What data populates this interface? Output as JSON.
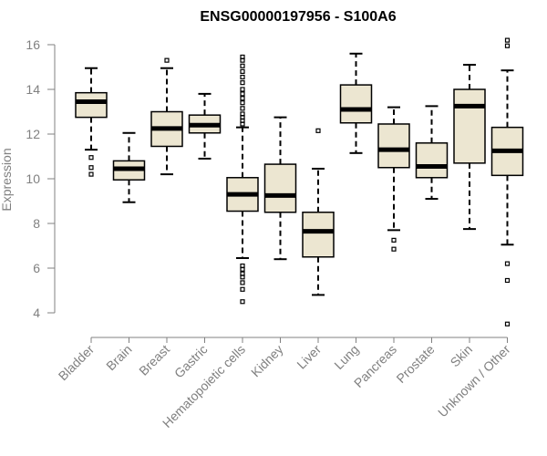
{
  "chart_data": {
    "type": "box",
    "title": "ENSG00000197956 - S100A6",
    "ylabel": "Expression",
    "xlabel": "",
    "ylim": [
      3.0,
      16.3
    ],
    "yticks": [
      4,
      6,
      8,
      10,
      12,
      14,
      16
    ],
    "box_color": "#ece6d1",
    "categories": [
      "Bladder",
      "Brain",
      "Breast",
      "Gastric",
      "Hematopoietic cells",
      "Kidney",
      "Liver",
      "Lung",
      "Pancreas",
      "Prostate",
      "Skin",
      "Unknown / Other"
    ],
    "boxes": [
      {
        "name": "Bladder",
        "whisker_low": 11.3,
        "q1": 12.75,
        "median": 13.45,
        "q3": 13.85,
        "whisker_high": 14.95,
        "outliers": [
          10.2,
          10.5,
          10.95
        ]
      },
      {
        "name": "Brain",
        "whisker_low": 8.95,
        "q1": 9.95,
        "median": 10.45,
        "q3": 10.8,
        "whisker_high": 12.05,
        "outliers": []
      },
      {
        "name": "Breast",
        "whisker_low": 10.2,
        "q1": 11.45,
        "median": 12.25,
        "q3": 13.0,
        "whisker_high": 14.95,
        "outliers": [
          15.3
        ]
      },
      {
        "name": "Gastric",
        "whisker_low": 10.9,
        "q1": 12.05,
        "median": 12.4,
        "q3": 12.85,
        "whisker_high": 13.8,
        "outliers": []
      },
      {
        "name": "Hematopoietic cells",
        "whisker_low": 6.45,
        "q1": 8.55,
        "median": 9.3,
        "q3": 10.05,
        "whisker_high": 12.3,
        "outliers": [
          4.5,
          5.05,
          5.35,
          5.6,
          5.75,
          5.95,
          6.1,
          12.45,
          12.6,
          12.75,
          12.9,
          13.15,
          13.4,
          13.6,
          13.8,
          14.0,
          14.3,
          14.55,
          14.8,
          15.05,
          15.3,
          15.45
        ]
      },
      {
        "name": "Kidney",
        "whisker_low": 6.4,
        "q1": 8.5,
        "median": 9.25,
        "q3": 10.65,
        "whisker_high": 12.75,
        "outliers": []
      },
      {
        "name": "Liver",
        "whisker_low": 4.8,
        "q1": 6.5,
        "median": 7.65,
        "q3": 8.5,
        "whisker_high": 10.45,
        "outliers": [
          12.15
        ]
      },
      {
        "name": "Lung",
        "whisker_low": 11.15,
        "q1": 12.5,
        "median": 13.1,
        "q3": 14.2,
        "whisker_high": 15.6,
        "outliers": []
      },
      {
        "name": "Pancreas",
        "whisker_low": 7.7,
        "q1": 10.5,
        "median": 11.3,
        "q3": 12.45,
        "whisker_high": 13.2,
        "outliers": [
          6.85,
          7.25
        ]
      },
      {
        "name": "Prostate",
        "whisker_low": 9.1,
        "q1": 10.05,
        "median": 10.55,
        "q3": 11.6,
        "whisker_high": 13.25,
        "outliers": []
      },
      {
        "name": "Skin",
        "whisker_low": 7.75,
        "q1": 10.7,
        "median": 13.25,
        "q3": 14.0,
        "whisker_high": 15.1,
        "outliers": []
      },
      {
        "name": "Unknown / Other",
        "whisker_low": 7.05,
        "q1": 10.15,
        "median": 11.25,
        "q3": 12.3,
        "whisker_high": 14.85,
        "outliers": [
          3.5,
          5.45,
          6.2,
          15.95,
          16.2
        ]
      }
    ]
  }
}
